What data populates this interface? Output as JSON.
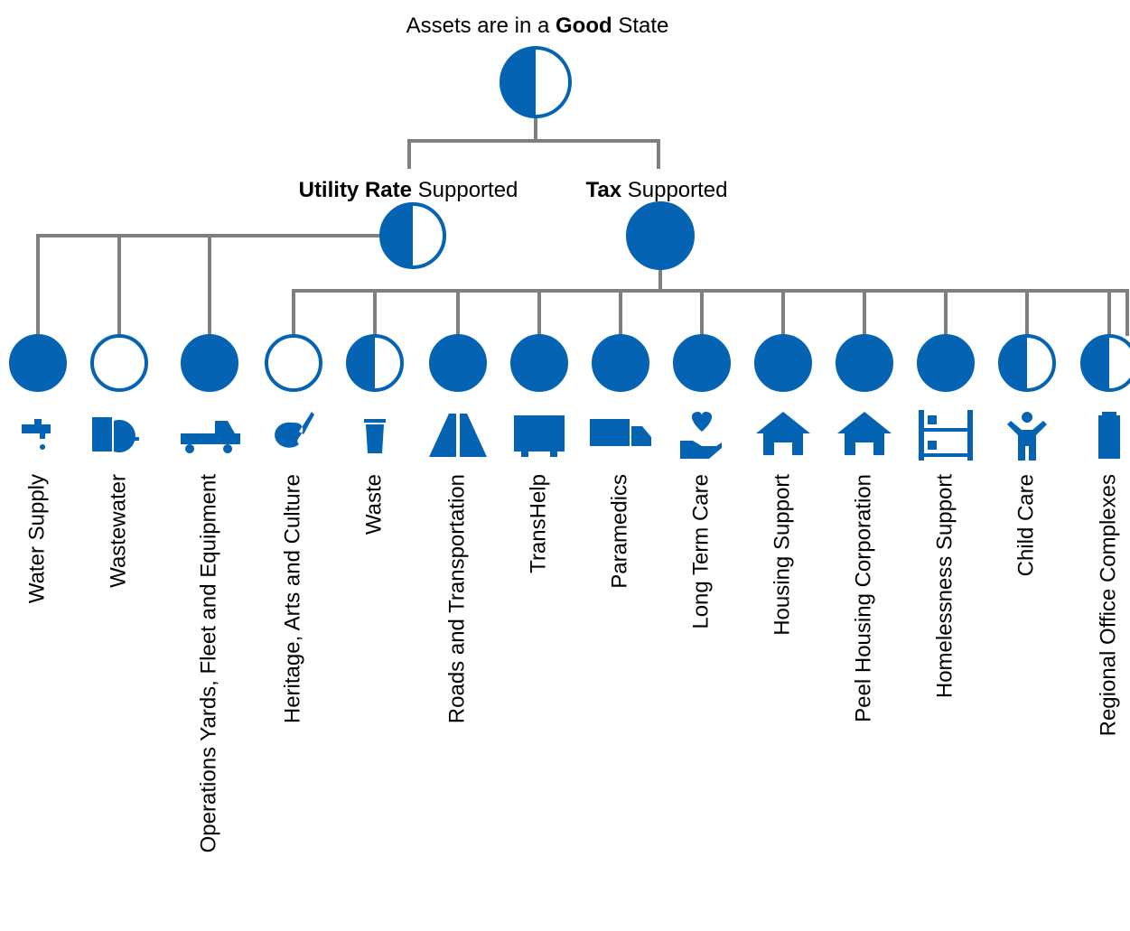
{
  "root": {
    "title_parts": [
      "Assets are in a ",
      "Good",
      " State"
    ],
    "rating": "half"
  },
  "groups": [
    {
      "label_parts": [
        "Utility Rate",
        " Supported"
      ],
      "rating": "half",
      "items": [
        {
          "label": "Water Supply",
          "rating": "full"
        },
        {
          "label": "Wastewater",
          "rating": "empty"
        },
        {
          "label": "Operations Yards, Fleet and Equipment",
          "rating": "full"
        }
      ]
    },
    {
      "label_parts": [
        "Tax",
        " Supported"
      ],
      "rating": "full",
      "items": [
        {
          "label": "Heritage, Arts and Culture",
          "rating": "empty"
        },
        {
          "label": "Waste",
          "rating": "half"
        },
        {
          "label": "Roads and Transportation",
          "rating": "full"
        },
        {
          "label": "TransHelp",
          "rating": "full"
        },
        {
          "label": "Paramedics",
          "rating": "full"
        },
        {
          "label": "Long Term Care",
          "rating": "full"
        },
        {
          "label": "Housing Support",
          "rating": "full"
        },
        {
          "label": "Peel Housing Corporation",
          "rating": "full"
        },
        {
          "label": "Homelessness Support",
          "rating": "full"
        },
        {
          "label": "Child Care",
          "rating": "half"
        },
        {
          "label": "Regional Office Complexes",
          "rating": "half"
        }
      ]
    }
  ]
}
